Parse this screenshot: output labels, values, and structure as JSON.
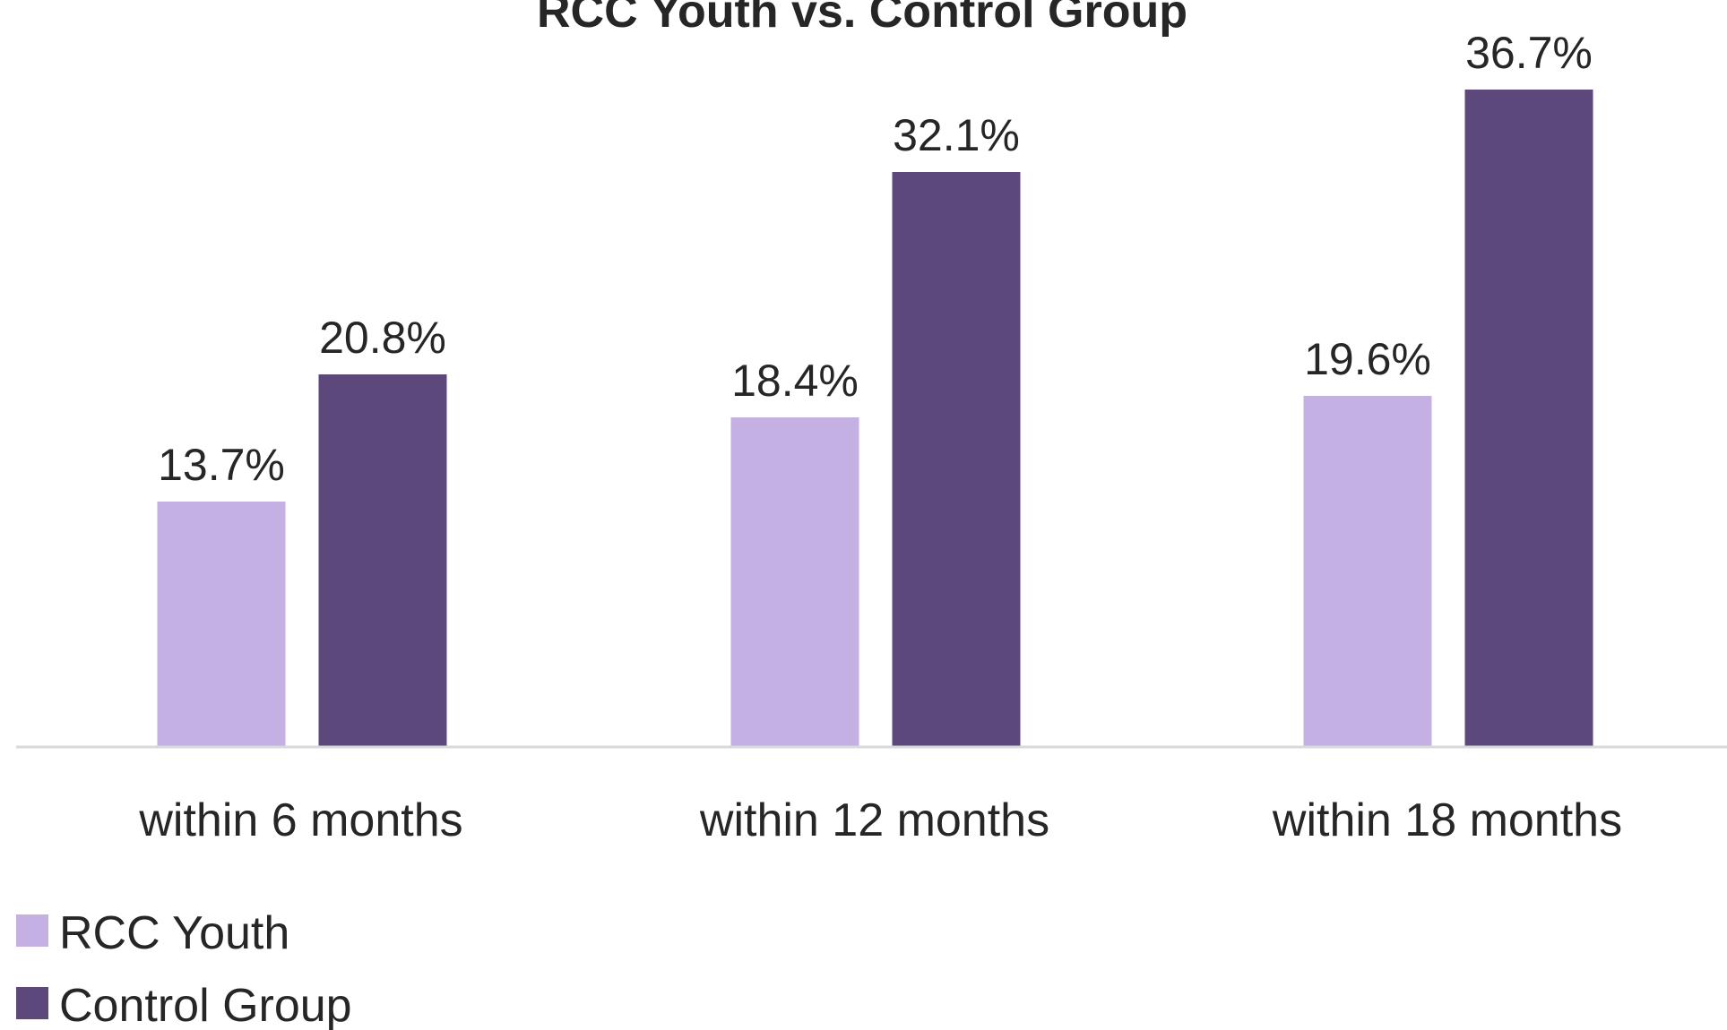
{
  "chart_data": {
    "type": "bar",
    "title": "RCC Youth vs. Control Group",
    "categories": [
      "within 6 months",
      "within 12 months",
      "within 18 months"
    ],
    "series": [
      {
        "name": "RCC Youth",
        "color": "#c5b0e4",
        "values": [
          13.7,
          18.4,
          19.6
        ],
        "labels": [
          "13.7%",
          "18.4%",
          "19.6%"
        ]
      },
      {
        "name": "Control Group",
        "color": "#5c487a",
        "values": [
          20.8,
          32.1,
          36.7
        ],
        "labels": [
          "20.8%",
          "32.1%",
          "36.7%"
        ]
      }
    ],
    "ylim": [
      0,
      36.7
    ],
    "grid": false,
    "legend_position": "bottom-left",
    "axis_color": "#d9d9d9"
  }
}
